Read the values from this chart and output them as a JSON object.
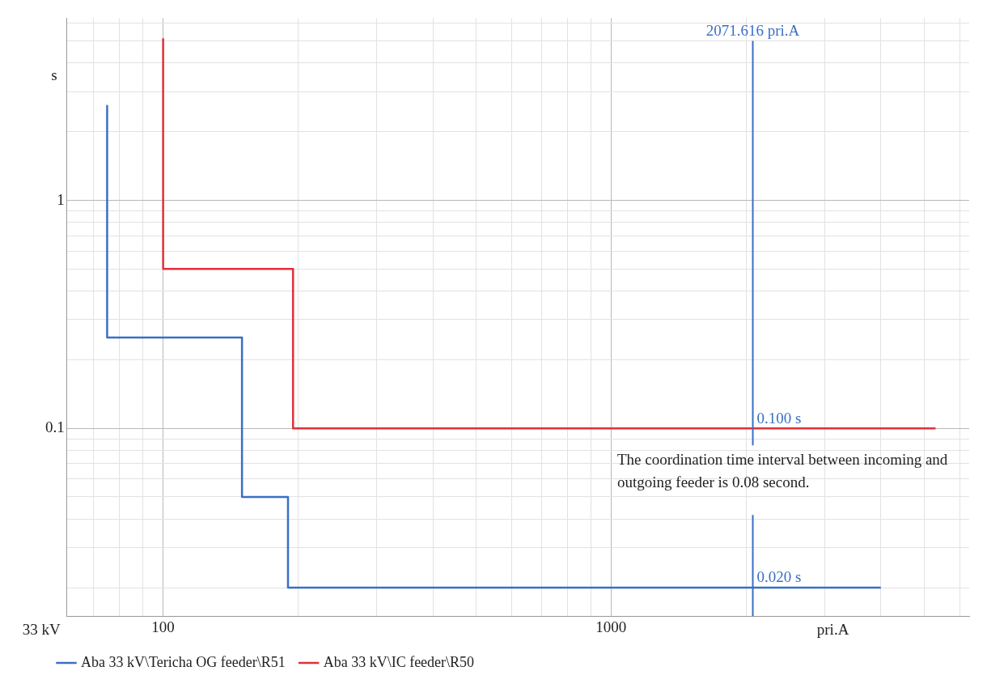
{
  "chart_data": {
    "type": "line",
    "xlabel": "pri.A",
    "ylabel": "s",
    "log": "xy",
    "xlim": [
      61,
      6300
    ],
    "ylim": [
      0.015,
      6.3
    ],
    "xticks": [
      {
        "value": 70,
        "label": null
      },
      {
        "value": 80,
        "label": null
      },
      {
        "value": 90,
        "label": null
      },
      100,
      {
        "value": 200,
        "label": null
      },
      {
        "value": 300,
        "label": null
      },
      {
        "value": 400,
        "label": null
      },
      {
        "value": 500,
        "label": null
      },
      {
        "value": 600,
        "label": null
      },
      {
        "value": 700,
        "label": null
      },
      {
        "value": 800,
        "label": null
      },
      {
        "value": 900,
        "label": null
      },
      1000,
      {
        "value": 2000,
        "label": null
      },
      {
        "value": 3000,
        "label": null
      },
      {
        "value": 4000,
        "label": null
      },
      {
        "value": 5000,
        "label": null
      },
      {
        "value": 6000,
        "label": null
      }
    ],
    "yticks": [
      {
        "value": 0.02,
        "label": null
      },
      {
        "value": 0.03,
        "label": null
      },
      {
        "value": 0.04,
        "label": null
      },
      {
        "value": 0.05,
        "label": null
      },
      {
        "value": 0.06,
        "label": null
      },
      {
        "value": 0.07,
        "label": null
      },
      {
        "value": 0.08,
        "label": null
      },
      {
        "value": 0.09,
        "label": null
      },
      0.1,
      {
        "value": 0.2,
        "label": null
      },
      {
        "value": 0.3,
        "label": null
      },
      {
        "value": 0.4,
        "label": null
      },
      {
        "value": 0.5,
        "label": null
      },
      {
        "value": 0.6,
        "label": null
      },
      {
        "value": 0.7,
        "label": null
      },
      {
        "value": 0.8,
        "label": null
      },
      {
        "value": 0.9,
        "label": null
      },
      1,
      {
        "value": 2,
        "label": null
      },
      {
        "value": 3,
        "label": null
      },
      {
        "value": 4,
        "label": null
      },
      {
        "value": 5,
        "label": null
      },
      {
        "value": 6,
        "label": null
      }
    ],
    "grid": true,
    "legend": "bottom",
    "marker": "none",
    "line_style": "solid",
    "series": [
      {
        "name": "Aba 33 kV\\Tericha OG feeder\\R51",
        "color": "#3a6fc4",
        "x": [
          75,
          75,
          150,
          150,
          190,
          190,
          4000
        ],
        "values": [
          2.6,
          0.25,
          0.25,
          0.05,
          0.05,
          0.02,
          0.02
        ]
      },
      {
        "name": "Aba 33 kV\\IC feeder\\R50",
        "color": "#e0303c",
        "x": [
          100,
          100,
          195,
          195,
          5300
        ],
        "values": [
          5.1,
          0.5,
          0.5,
          0.1,
          0.1
        ]
      }
    ],
    "ref_lines": [
      {
        "axis": "x",
        "value": 2071.616,
        "label": "2071.616 pri.A",
        "color": "#3a6fc4"
      }
    ],
    "annotations": [
      {
        "text": "0.100 s",
        "x": 2071.616,
        "y": 0.1
      },
      {
        "text": "0.020 s",
        "x": 2071.616,
        "y": 0.02
      },
      "The coordination time interval between incoming and outgoing feeder is 0.08 second.",
      "33 kV"
    ]
  }
}
